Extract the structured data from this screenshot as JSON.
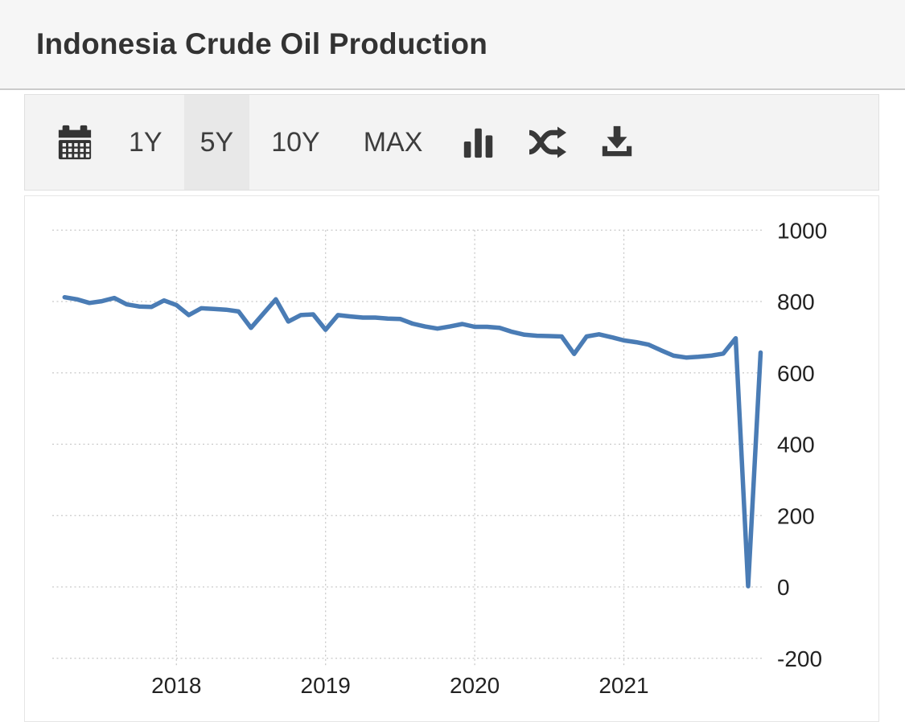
{
  "header": {
    "title": "Indonesia Crude Oil Production"
  },
  "toolbar": {
    "range_buttons": [
      {
        "label": "1Y",
        "selected": false
      },
      {
        "label": "5Y",
        "selected": true
      },
      {
        "label": "10Y",
        "selected": false
      },
      {
        "label": "MAX",
        "selected": false
      }
    ],
    "icons": {
      "calendar": "calendar-icon",
      "bar_chart": "bar-chart-icon",
      "shuffle": "shuffle-icon",
      "download": "download-icon"
    }
  },
  "chart_data": {
    "type": "line",
    "title": "Indonesia Crude Oil Production",
    "line_color": "#4a7cb5",
    "grid": "dotted",
    "legend": "none",
    "ylim": [
      -200,
      1000
    ],
    "y_axis": {
      "position": "right",
      "tick_values": [
        1000,
        800,
        600,
        400,
        200,
        0,
        -200
      ],
      "tick_labels": [
        "1000",
        "800",
        "600",
        "400",
        "200",
        "0",
        "-200"
      ]
    },
    "x_axis": {
      "tick_years": [
        2018,
        2019,
        2020,
        2021
      ],
      "tick_labels": [
        "2018",
        "2019",
        "2020",
        "2021"
      ]
    },
    "series": [
      {
        "name": "Indonesia Crude Oil Production",
        "frequency": "monthly",
        "start_year": 2017,
        "start_month": 4,
        "values": [
          812,
          806,
          796,
          801,
          810,
          792,
          786,
          785,
          803,
          790,
          762,
          781,
          779,
          777,
          772,
          726,
          766,
          806,
          744,
          762,
          764,
          721,
          762,
          758,
          755,
          755,
          752,
          751,
          738,
          730,
          724,
          730,
          737,
          729,
          729,
          726,
          715,
          707,
          704,
          703,
          702,
          653,
          702,
          708,
          700,
          691,
          686,
          679,
          663,
          648,
          643,
          645,
          648,
          654,
          697,
          2,
          657
        ]
      }
    ]
  }
}
